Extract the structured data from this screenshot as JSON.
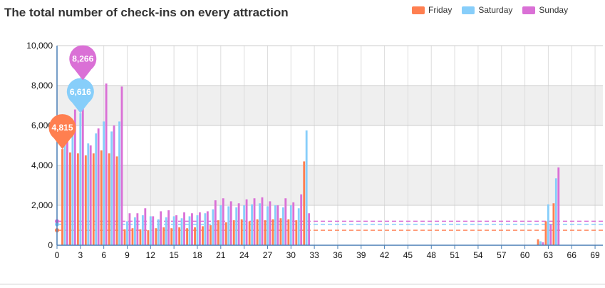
{
  "chart_data": {
    "type": "bar",
    "title": "The total number of check-ins on every attraction",
    "xlabel": "",
    "ylabel": "",
    "ylim": [
      0,
      10000
    ],
    "xlim": [
      0,
      70
    ],
    "grid": true,
    "legend": "top-right",
    "yticks": [
      "0",
      "2,000",
      "4,000",
      "6,000",
      "8,000",
      "10,000"
    ],
    "ytick_values": [
      0,
      2000,
      4000,
      6000,
      8000,
      10000
    ],
    "xticks": [
      "0",
      "3",
      "6",
      "9",
      "12",
      "15",
      "18",
      "21",
      "24",
      "27",
      "30",
      "33",
      "36",
      "39",
      "42",
      "45",
      "48",
      "51",
      "54",
      "57",
      "60",
      "63",
      "66",
      "69"
    ],
    "xtick_values": [
      0,
      3,
      6,
      9,
      12,
      15,
      18,
      21,
      24,
      27,
      30,
      33,
      36,
      39,
      42,
      45,
      48,
      51,
      54,
      57,
      60,
      63,
      66,
      69
    ],
    "series": [
      {
        "name": "Friday",
        "color": "#FF7F50",
        "points": [
          [
            1,
            4815
          ],
          [
            2,
            4650
          ],
          [
            3,
            4600
          ],
          [
            4,
            4500
          ],
          [
            5,
            4600
          ],
          [
            6,
            4750
          ],
          [
            7,
            4600
          ],
          [
            8,
            4450
          ],
          [
            9,
            800
          ],
          [
            10,
            850
          ],
          [
            11,
            800
          ],
          [
            12,
            750
          ],
          [
            13,
            850
          ],
          [
            14,
            900
          ],
          [
            15,
            850
          ],
          [
            16,
            900
          ],
          [
            17,
            850
          ],
          [
            18,
            900
          ],
          [
            19,
            950
          ],
          [
            20,
            1000
          ],
          [
            21,
            1250
          ],
          [
            22,
            1150
          ],
          [
            23,
            1250
          ],
          [
            24,
            1300
          ],
          [
            25,
            1200
          ],
          [
            26,
            1300
          ],
          [
            27,
            1250
          ],
          [
            28,
            1300
          ],
          [
            29,
            1350
          ],
          [
            30,
            1300
          ],
          [
            31,
            1250
          ],
          [
            32,
            4200
          ],
          [
            62,
            300
          ],
          [
            63,
            1200
          ],
          [
            64,
            2100
          ]
        ],
        "average": 750
      },
      {
        "name": "Saturday",
        "color": "#87CEFA",
        "points": [
          [
            1,
            5900
          ],
          [
            2,
            5900
          ],
          [
            3,
            6616
          ],
          [
            4,
            5100
          ],
          [
            5,
            5600
          ],
          [
            6,
            6200
          ],
          [
            7,
            5700
          ],
          [
            8,
            6200
          ],
          [
            9,
            1200
          ],
          [
            10,
            1400
          ],
          [
            11,
            1500
          ],
          [
            12,
            1450
          ],
          [
            13,
            1300
          ],
          [
            14,
            1400
          ],
          [
            15,
            1450
          ],
          [
            16,
            1350
          ],
          [
            17,
            1450
          ],
          [
            18,
            1500
          ],
          [
            19,
            1600
          ],
          [
            20,
            1800
          ],
          [
            21,
            2000
          ],
          [
            22,
            1950
          ],
          [
            23,
            1900
          ],
          [
            24,
            2000
          ],
          [
            25,
            2050
          ],
          [
            26,
            2100
          ],
          [
            27,
            1950
          ],
          [
            28,
            2000
          ],
          [
            29,
            1900
          ],
          [
            30,
            2000
          ],
          [
            31,
            1850
          ],
          [
            32,
            5750
          ],
          [
            62,
            200
          ],
          [
            63,
            2050
          ],
          [
            64,
            3350
          ]
        ],
        "average": 1050
      },
      {
        "name": "Sunday",
        "color": "#DA70D6",
        "points": [
          [
            1,
            6500
          ],
          [
            2,
            6800
          ],
          [
            3,
            8266
          ],
          [
            4,
            5000
          ],
          [
            5,
            5850
          ],
          [
            6,
            8100
          ],
          [
            7,
            6000
          ],
          [
            8,
            7950
          ],
          [
            9,
            1600
          ],
          [
            10,
            1600
          ],
          [
            11,
            1850
          ],
          [
            12,
            1450
          ],
          [
            13,
            1700
          ],
          [
            14,
            1750
          ],
          [
            15,
            1500
          ],
          [
            16,
            1650
          ],
          [
            17,
            1600
          ],
          [
            18,
            1650
          ],
          [
            19,
            1700
          ],
          [
            20,
            2250
          ],
          [
            21,
            2350
          ],
          [
            22,
            2200
          ],
          [
            23,
            2100
          ],
          [
            24,
            2300
          ],
          [
            25,
            2350
          ],
          [
            26,
            2400
          ],
          [
            27,
            2200
          ],
          [
            28,
            2000
          ],
          [
            29,
            2350
          ],
          [
            30,
            2150
          ],
          [
            31,
            2550
          ],
          [
            32,
            1600
          ],
          [
            62,
            150
          ],
          [
            63,
            1050
          ],
          [
            64,
            3900
          ]
        ],
        "average": 1200
      }
    ],
    "annotations": [
      {
        "series": "Friday",
        "label": "4,815",
        "x": 1,
        "value": 4815
      },
      {
        "series": "Saturday",
        "label": "6,616",
        "x": 3,
        "value": 6616
      },
      {
        "series": "Sunday",
        "label": "8,266",
        "x": 3,
        "value": 8266
      }
    ]
  }
}
